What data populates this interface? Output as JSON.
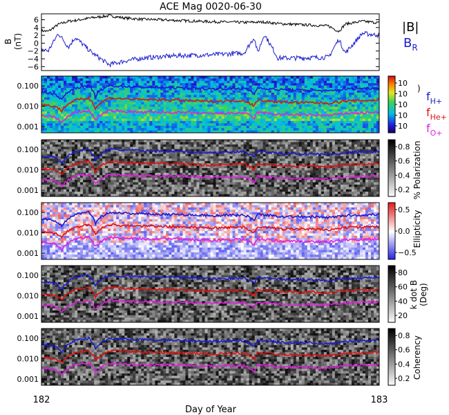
{
  "chart_data": {
    "type": "line",
    "title": "ACE Mag 0020-06-30",
    "xlabel": "Day of Year",
    "x_ticks": [
      "182",
      "183"
    ],
    "xlim": [
      182,
      183
    ],
    "panels": [
      {
        "kind": "field",
        "ylabel_line1": "B",
        "ylabel_line2": "(nT)",
        "ylim": [
          -7,
          7.5
        ],
        "y_ticks": [
          "6",
          "4",
          "2",
          "0",
          "−2",
          "−4",
          "−6"
        ],
        "y_tick_values": [
          6,
          4,
          2,
          0,
          -2,
          -4,
          -6
        ],
        "legend_B": "|B|",
        "legend_BR_main": "B",
        "legend_BR_sub": "R",
        "series": [
          {
            "name": "|B|",
            "color": "#000000",
            "x": [
              182.0,
              182.02,
              182.05,
              182.08,
              182.1,
              182.15,
              182.2,
              182.25,
              182.3,
              182.35,
              182.4,
              182.5,
              182.6,
              182.66,
              182.7,
              182.75,
              182.8,
              182.85,
              182.88,
              182.9,
              182.95,
              183.0
            ],
            "y": [
              3.2,
              3.0,
              4.8,
              5.6,
              5.8,
              6.5,
              7.0,
              6.4,
              6.1,
              6.0,
              5.8,
              5.5,
              5.3,
              5.4,
              5.0,
              4.8,
              4.6,
              4.4,
              3.0,
              4.9,
              5.6,
              5.2
            ]
          },
          {
            "name": "B_R",
            "color": "#1a1acc",
            "x": [
              182.0,
              182.02,
              182.05,
              182.08,
              182.1,
              182.15,
              182.2,
              182.25,
              182.3,
              182.35,
              182.4,
              182.5,
              182.6,
              182.63,
              182.64,
              182.66,
              182.7,
              182.75,
              182.8,
              182.85,
              182.88,
              182.9,
              182.95,
              183.0
            ],
            "y": [
              -1.5,
              -2.0,
              2.5,
              -1.0,
              1.5,
              -2.5,
              -5.5,
              -4.5,
              -3.8,
              -3.5,
              -3.2,
              -3.0,
              -2.5,
              1.5,
              -2.5,
              2.3,
              -3.8,
              -3.8,
              -3.7,
              -3.6,
              1.0,
              -2.5,
              2.5,
              2.0
            ]
          }
        ]
      },
      {
        "kind": "spectrogram",
        "cmap": "rainbow",
        "cbar_ticks": [
          "10",
          "10",
          "10",
          "10",
          "10"
        ],
        "cbar_label": ")"
      },
      {
        "kind": "spectrogram",
        "cmap": "gray",
        "cbar_ticks": [
          "0.8",
          "0.6",
          "0.4",
          "0.2"
        ],
        "cbar_label": "% Polarization"
      },
      {
        "kind": "spectrogram",
        "cmap": "bwr",
        "cbar_ticks": [
          "0.5",
          "0.0",
          "−0.5"
        ],
        "cbar_label": "Ellipticity"
      },
      {
        "kind": "spectrogram",
        "cmap": "gray",
        "cbar_ticks": [
          "80",
          "60",
          "40",
          "20"
        ],
        "cbar_label": "k dot B",
        "cbar_label2": "(Deg)"
      },
      {
        "kind": "spectrogram",
        "cmap": "gray",
        "cbar_ticks": [
          "0.8",
          "0.6",
          "0.4",
          "0.2"
        ],
        "cbar_label": "Coherency"
      }
    ],
    "freq_y_ticks": [
      "0.100",
      "0.010",
      "0.001"
    ],
    "freq_tick_values": [
      0.1,
      0.01,
      0.001
    ],
    "freq_ylim": [
      0.0005,
      0.3
    ],
    "freq_lines": {
      "x": [
        182.0,
        182.04,
        182.06,
        182.1,
        182.14,
        182.16,
        182.2,
        182.3,
        182.4,
        182.5,
        182.6,
        182.63,
        182.64,
        182.7,
        182.8,
        182.85,
        182.9,
        183.0
      ],
      "series": [
        {
          "name": "f_H+",
          "color": "#1a1acc",
          "y": [
            0.05,
            0.04,
            0.02,
            0.08,
            0.1,
            0.03,
            0.1,
            0.085,
            0.08,
            0.07,
            0.075,
            0.04,
            0.08,
            0.065,
            0.06,
            0.055,
            0.07,
            0.08
          ]
        },
        {
          "name": "f_He+",
          "color": "#dd1111",
          "y": [
            0.012,
            0.01,
            0.006,
            0.02,
            0.025,
            0.008,
            0.025,
            0.021,
            0.02,
            0.017,
            0.019,
            0.01,
            0.02,
            0.016,
            0.015,
            0.014,
            0.018,
            0.02
          ]
        },
        {
          "name": "f_O+",
          "color": "#e020e0",
          "y": [
            0.0035,
            0.003,
            0.0015,
            0.005,
            0.006,
            0.002,
            0.006,
            0.005,
            0.005,
            0.0043,
            0.0047,
            0.0025,
            0.005,
            0.004,
            0.0037,
            0.0035,
            0.0045,
            0.005
          ]
        }
      ]
    },
    "freq_legend": [
      {
        "main": "f",
        "sub": "H+",
        "color": "#1a1acc"
      },
      {
        "main": "f",
        "sub": "He+",
        "color": "#dd1111"
      },
      {
        "main": "f",
        "sub": "O+",
        "color": "#e020e0"
      }
    ]
  }
}
